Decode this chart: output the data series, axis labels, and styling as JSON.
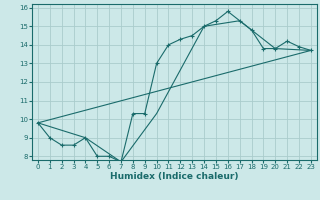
{
  "title": "",
  "xlabel": "Humidex (Indice chaleur)",
  "bg_color": "#cce8e8",
  "grid_color": "#aacccc",
  "line_color": "#1a6b6b",
  "xlim": [
    -0.5,
    23.5
  ],
  "ylim": [
    7.8,
    16.2
  ],
  "xticks": [
    0,
    1,
    2,
    3,
    4,
    5,
    6,
    7,
    8,
    9,
    10,
    11,
    12,
    13,
    14,
    15,
    16,
    17,
    18,
    19,
    20,
    21,
    22,
    23
  ],
  "yticks": [
    8,
    9,
    10,
    11,
    12,
    13,
    14,
    15,
    16
  ],
  "line1_x": [
    0,
    1,
    2,
    3,
    4,
    5,
    6,
    7,
    8,
    9,
    10,
    11,
    12,
    13,
    14,
    15,
    16,
    17,
    18,
    19,
    20,
    21,
    22,
    23
  ],
  "line1_y": [
    9.8,
    9.0,
    8.6,
    8.6,
    9.0,
    8.0,
    8.0,
    7.7,
    10.3,
    10.3,
    13.0,
    14.0,
    14.3,
    14.5,
    15.0,
    15.3,
    15.8,
    15.3,
    14.8,
    13.8,
    13.8,
    14.2,
    13.9,
    13.7
  ],
  "line2_x": [
    0,
    4,
    7,
    10,
    14,
    17,
    20,
    23
  ],
  "line2_y": [
    9.8,
    9.0,
    7.7,
    10.3,
    15.0,
    15.3,
    13.8,
    13.7
  ],
  "line3_x": [
    0,
    23
  ],
  "line3_y": [
    9.8,
    13.7
  ],
  "tick_fontsize": 5.0,
  "xlabel_fontsize": 6.5
}
